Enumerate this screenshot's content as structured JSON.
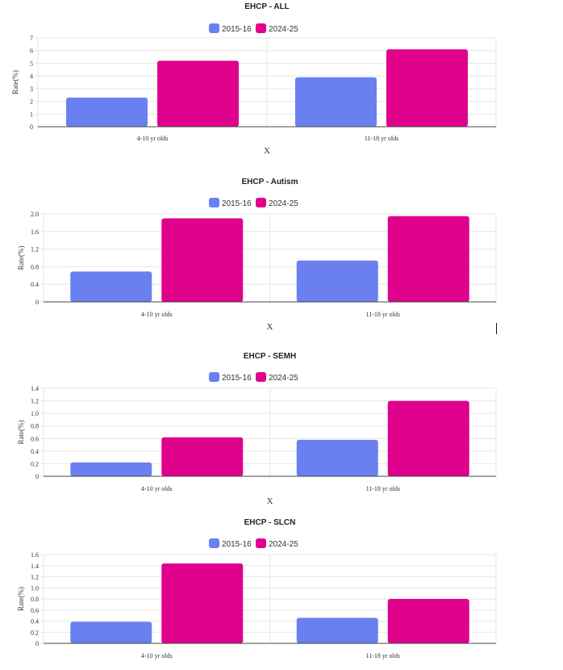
{
  "colors": {
    "series_2015": "#6a80f0",
    "series_2024": "#e0028c",
    "grid": "#e6e6e6",
    "axis": "#444444"
  },
  "chart_data": [
    {
      "type": "bar",
      "title": "EHCP - ALL",
      "categories": [
        "4-10 yr olds",
        "11-18 yr olds"
      ],
      "series": [
        {
          "name": "2015-16",
          "values": [
            2.3,
            3.9
          ]
        },
        {
          "name": "2024-25",
          "values": [
            5.2,
            6.1
          ]
        }
      ],
      "ylabel": "Rate(%)",
      "xlabel": "X",
      "ylim": [
        0,
        7
      ],
      "yticks": [
        "0",
        "1",
        "2",
        "3",
        "4",
        "5",
        "6",
        "7"
      ],
      "grid": true
    },
    {
      "type": "bar",
      "title": "EHCP - Autism",
      "categories": [
        "4-10 yr olds",
        "11-18 yr olds"
      ],
      "series": [
        {
          "name": "2015-16",
          "values": [
            0.69,
            0.94
          ]
        },
        {
          "name": "2024-25",
          "values": [
            1.9,
            1.95
          ]
        }
      ],
      "ylabel": "Rate(%)",
      "xlabel": "X",
      "ylim": [
        0,
        2.0
      ],
      "yticks": [
        "0",
        "0.4",
        "0.8",
        "1.2",
        "1.6",
        "2.0"
      ],
      "grid": true
    },
    {
      "type": "bar",
      "title": "EHCP - SEMH",
      "categories": [
        "4-10 yr olds",
        "11-18 yr olds"
      ],
      "series": [
        {
          "name": "2015-16",
          "values": [
            0.22,
            0.58
          ]
        },
        {
          "name": "2024-25",
          "values": [
            0.62,
            1.2
          ]
        }
      ],
      "ylabel": "Rate(%)",
      "xlabel": "X",
      "ylim": [
        0,
        1.4
      ],
      "yticks": [
        "0",
        "0.2",
        "0.4",
        "0.6",
        "0.8",
        "1.0",
        "1.2",
        "1.4"
      ],
      "grid": true
    },
    {
      "type": "bar",
      "title": "EHCP - SLCN",
      "categories": [
        "4-10 yr olds",
        "11-18 yr olds"
      ],
      "series": [
        {
          "name": "2015-16",
          "values": [
            0.39,
            0.46
          ]
        },
        {
          "name": "2024-25",
          "values": [
            1.44,
            0.8
          ]
        }
      ],
      "ylabel": "Rate(%)",
      "xlabel": "",
      "ylim": [
        0,
        1.6
      ],
      "yticks": [
        "0",
        "0.2",
        "0.4",
        "0.6",
        "0.8",
        "1.0",
        "1.2",
        "1.4",
        "1.6"
      ],
      "grid": true
    }
  ]
}
